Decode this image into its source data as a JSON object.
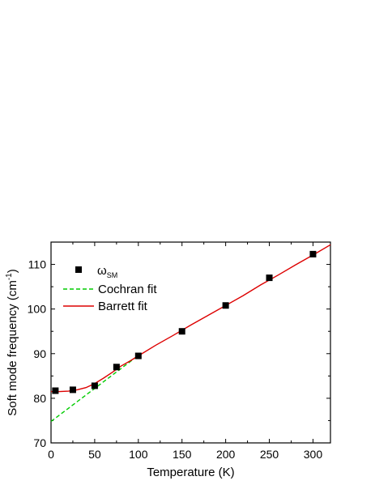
{
  "chart_data": {
    "type": "scatter",
    "xlabel": "Temperature (K)",
    "ylabel": {
      "main": "Soft mode frequency (cm",
      "sup": "-1",
      "close": ")"
    },
    "xlim": [
      0,
      320
    ],
    "ylim": [
      70,
      115
    ],
    "x_ticks": [
      0,
      50,
      100,
      150,
      200,
      250,
      300
    ],
    "y_ticks": [
      70,
      80,
      90,
      100,
      110
    ],
    "x_minor_step": 25,
    "y_minor_step": 5,
    "grid": false,
    "legend_position": "top-left",
    "series": [
      {
        "name": {
          "main": "ω",
          "sub": "SM"
        },
        "kind": "markers",
        "marker": "square",
        "color": "#000000",
        "x": [
          5,
          25,
          50,
          75,
          100,
          150,
          200,
          250,
          300
        ],
        "y": [
          81.7,
          81.9,
          82.8,
          87.0,
          89.5,
          95.0,
          100.8,
          107.0,
          112.3
        ]
      },
      {
        "name": "Cochran fit",
        "kind": "line",
        "style": "dashed",
        "color": "#00cc00",
        "x": [
          0,
          100
        ],
        "y": [
          74.8,
          89.6
        ]
      },
      {
        "name": "Barrett fit",
        "kind": "line",
        "style": "solid",
        "color": "#dd0000",
        "x": [
          0,
          10,
          20,
          30,
          40,
          50,
          60,
          70,
          80,
          90,
          100,
          120,
          140,
          160,
          180,
          200,
          220,
          240,
          260,
          280,
          300,
          320
        ],
        "y": [
          81.5,
          81.5,
          81.6,
          81.9,
          82.4,
          83.3,
          84.5,
          85.8,
          87.2,
          88.3,
          89.5,
          91.9,
          94.1,
          96.4,
          98.6,
          100.8,
          103.0,
          105.4,
          107.6,
          109.9,
          112.1,
          114.4
        ]
      }
    ]
  }
}
